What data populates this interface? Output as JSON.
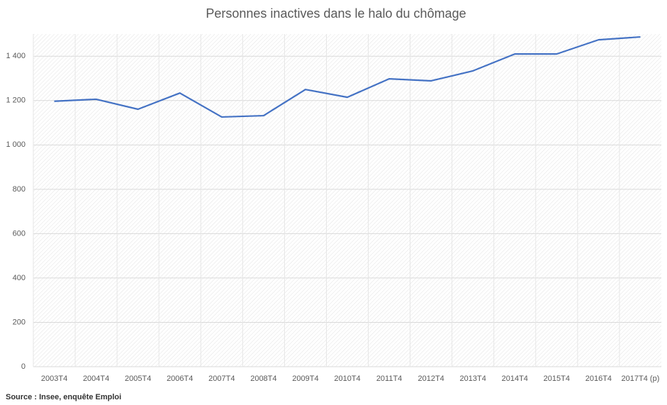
{
  "chart_data": {
    "type": "line",
    "title": "Personnes inactives dans le halo du chômage",
    "source": "Source : Insee, enquête Emploi",
    "categories": [
      "2003T4",
      "2004T4",
      "2005T4",
      "2006T4",
      "2007T4",
      "2008T4",
      "2009T4",
      "2010T4",
      "2011T4",
      "2012T4",
      "2013T4",
      "2014T4",
      "2015T4",
      "2016T4",
      "2017T4 (p)"
    ],
    "series": [
      {
        "color": "#4472c4",
        "values": [
          1197,
          1206,
          1161,
          1234,
          1126,
          1132,
          1250,
          1215,
          1298,
          1289,
          1334,
          1410,
          1410,
          1474,
          1487
        ]
      }
    ],
    "ylim": [
      0,
      1500
    ],
    "yticks": [
      0,
      200,
      400,
      600,
      800,
      {
        "value": 1000,
        "label": "1 000"
      },
      {
        "value": 1200,
        "label": "1 200"
      },
      {
        "value": 1400,
        "label": "1 400"
      }
    ],
    "grid": true
  }
}
